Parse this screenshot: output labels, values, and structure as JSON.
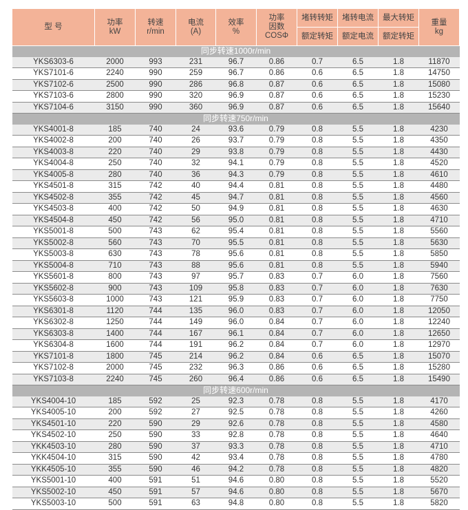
{
  "header": {
    "model": "型  号",
    "power": [
      "功率",
      "kW"
    ],
    "speed": [
      "转速",
      "r/min"
    ],
    "current": [
      "电流",
      "(A)"
    ],
    "efficiency": [
      "效率",
      "%"
    ],
    "pf": [
      "功率",
      "因数",
      "COSΦ"
    ],
    "locked_torque": [
      "堵转转矩",
      "额定转矩"
    ],
    "locked_current": [
      "堵转电流",
      "额定电流"
    ],
    "max_torque": [
      "最大转矩",
      "额定转矩"
    ],
    "weight": [
      "重量",
      "kg"
    ]
  },
  "sections": [
    {
      "title": "同步转速1000r/min",
      "rows": [
        [
          "YKS6303-6",
          "2000",
          "993",
          "231",
          "96.7",
          "0.86",
          "0.7",
          "6.5",
          "1.8",
          "11870"
        ],
        [
          "YKS7101-6",
          "2240",
          "990",
          "259",
          "96.7",
          "0.86",
          "0.6",
          "6.5",
          "1.8",
          "14750"
        ],
        [
          "YKS7102-6",
          "2500",
          "990",
          "286",
          "96.8",
          "0.87",
          "0.6",
          "6.5",
          "1.8",
          "15080"
        ],
        [
          "YKS7103-6",
          "2800",
          "990",
          "320",
          "96.9",
          "0.87",
          "0.6",
          "6.5",
          "1.8",
          "15230"
        ],
        [
          "YKS7104-6",
          "3150",
          "990",
          "360",
          "96.9",
          "0.87",
          "0.6",
          "6.5",
          "1.8",
          "15640"
        ]
      ]
    },
    {
      "title": "同步转速750r/min",
      "rows": [
        [
          "YKS4001-8",
          "185",
          "740",
          "24",
          "93.6",
          "0.79",
          "0.8",
          "5.5",
          "1.8",
          "4230"
        ],
        [
          "YKS4002-8",
          "200",
          "740",
          "26",
          "93.7",
          "0.79",
          "0.8",
          "5.5",
          "1.8",
          "4350"
        ],
        [
          "YKS4003-8",
          "220",
          "740",
          "29",
          "93.8",
          "0.79",
          "0.8",
          "5.5",
          "1.8",
          "4430"
        ],
        [
          "YKS4004-8",
          "250",
          "740",
          "32",
          "94.1",
          "0.79",
          "0.8",
          "5.5",
          "1.8",
          "4520"
        ],
        [
          "YKS4005-8",
          "280",
          "740",
          "36",
          "94.3",
          "0.79",
          "0.8",
          "5.5",
          "1.8",
          "4610"
        ],
        [
          "YKS4501-8",
          "315",
          "742",
          "40",
          "94.4",
          "0.81",
          "0.8",
          "5.5",
          "1.8",
          "4480"
        ],
        [
          "YKS4502-8",
          "355",
          "742",
          "45",
          "94.7",
          "0.81",
          "0.8",
          "5.5",
          "1.8",
          "4560"
        ],
        [
          "YKS4503-8",
          "400",
          "742",
          "50",
          "94.9",
          "0.81",
          "0.8",
          "5.5",
          "1.8",
          "4630"
        ],
        [
          "YKS4504-8",
          "450",
          "742",
          "56",
          "95.0",
          "0.81",
          "0.8",
          "5.5",
          "1.8",
          "4710"
        ],
        [
          "YKS5001-8",
          "500",
          "743",
          "62",
          "95.4",
          "0.81",
          "0.8",
          "5.5",
          "1.8",
          "5560"
        ],
        [
          "YKS5002-8",
          "560",
          "743",
          "70",
          "95.5",
          "0.81",
          "0.8",
          "5.5",
          "1.8",
          "5630"
        ],
        [
          "YKS5003-8",
          "630",
          "743",
          "78",
          "95.6",
          "0.81",
          "0.8",
          "5.5",
          "1.8",
          "5850"
        ],
        [
          "YKS5004-8",
          "710",
          "743",
          "88",
          "95.6",
          "0.81",
          "0.8",
          "5.5",
          "1.8",
          "5940"
        ],
        [
          "YKS5601-8",
          "800",
          "743",
          "97",
          "95.7",
          "0.83",
          "0.7",
          "6.0",
          "1.8",
          "7560"
        ],
        [
          "YKS5602-8",
          "900",
          "743",
          "109",
          "95.8",
          "0.83",
          "0.7",
          "6.0",
          "1.8",
          "7630"
        ],
        [
          "YKS5603-8",
          "1000",
          "743",
          "121",
          "95.9",
          "0.83",
          "0.7",
          "6.0",
          "1.8",
          "7750"
        ],
        [
          "YKS6301-8",
          "1120",
          "744",
          "135",
          "96.0",
          "0.83",
          "0.7",
          "6.0",
          "1.8",
          "12050"
        ],
        [
          "YKS6302-8",
          "1250",
          "744",
          "149",
          "96.0",
          "0.84",
          "0.7",
          "6.0",
          "1.8",
          "12240"
        ],
        [
          "YKS6303-8",
          "1400",
          "744",
          "167",
          "96.1",
          "0.84",
          "0.7",
          "6.0",
          "1.8",
          "12650"
        ],
        [
          "YKS6304-8",
          "1600",
          "744",
          "191",
          "96.2",
          "0.84",
          "0.7",
          "6.0",
          "1.8",
          "12970"
        ],
        [
          "YKS7101-8",
          "1800",
          "745",
          "214",
          "96.2",
          "0.84",
          "0.6",
          "6.5",
          "1.8",
          "15070"
        ],
        [
          "YKS7102-8",
          "2000",
          "745",
          "232",
          "96.3",
          "0.86",
          "0.6",
          "6.5",
          "1.8",
          "15280"
        ],
        [
          "YKS7103-8",
          "2240",
          "745",
          "260",
          "96.4",
          "0.86",
          "0.6",
          "6.5",
          "1.8",
          "15490"
        ]
      ]
    },
    {
      "title": "同步转速600r/min",
      "rows": [
        [
          "YKS4004-10",
          "185",
          "592",
          "25",
          "92.3",
          "0.78",
          "0.8",
          "5.5",
          "1.8",
          "4170"
        ],
        [
          "YKS4005-10",
          "200",
          "592",
          "27",
          "92.5",
          "0.78",
          "0.8",
          "5.5",
          "1.8",
          "4260"
        ],
        [
          "YKS4501-10",
          "220",
          "590",
          "29",
          "92.6",
          "0.78",
          "0.8",
          "5.5",
          "1.8",
          "4580"
        ],
        [
          "YKS4502-10",
          "250",
          "590",
          "33",
          "92.8",
          "0.78",
          "0.8",
          "5.5",
          "1.8",
          "4640"
        ],
        [
          "YKK4503-10",
          "280",
          "590",
          "37",
          "93.3",
          "0.78",
          "0.8",
          "5.5",
          "1.8",
          "4710"
        ],
        [
          "YKK4504-10",
          "315",
          "590",
          "42",
          "93.4",
          "0.78",
          "0.8",
          "5.5",
          "1.8",
          "4780"
        ],
        [
          "YKK4505-10",
          "355",
          "590",
          "46",
          "94.2",
          "0.78",
          "0.8",
          "5.5",
          "1.8",
          "4820"
        ],
        [
          "YKS5001-10",
          "400",
          "591",
          "51",
          "94.6",
          "0.80",
          "0.8",
          "5.5",
          "1.8",
          "5520"
        ],
        [
          "YKS5002-10",
          "450",
          "591",
          "57",
          "94.6",
          "0.80",
          "0.8",
          "5.5",
          "1.8",
          "5670"
        ],
        [
          "YKS5003-10",
          "500",
          "591",
          "63",
          "94.8",
          "0.80",
          "0.8",
          "5.5",
          "1.8",
          "5820"
        ]
      ]
    }
  ]
}
